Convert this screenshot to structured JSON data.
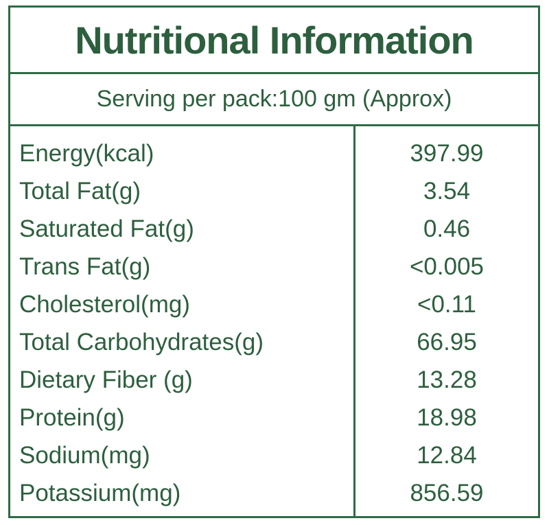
{
  "panel": {
    "title": "Nutritional Information",
    "serving": "Serving per pack:100 gm (Approx)"
  },
  "colors": {
    "text_green": "#2d5f3e",
    "border_green": "#2e6a45",
    "background": "#ffffff"
  },
  "table": {
    "rows": [
      {
        "label": "Energy(kcal)",
        "value": "397.99"
      },
      {
        "label": "Total Fat(g)",
        "value": "3.54"
      },
      {
        "label": "Saturated Fat(g)",
        "value": "0.46"
      },
      {
        "label": "Trans Fat(g)",
        "value": "<0.005"
      },
      {
        "label": "Cholesterol(mg)",
        "value": "<0.11"
      },
      {
        "label": "Total Carbohydrates(g)",
        "value": "66.95"
      },
      {
        "label": "Dietary Fiber (g)",
        "value": "13.28"
      },
      {
        "label": "Protein(g)",
        "value": "18.98"
      },
      {
        "label": "Sodium(mg)",
        "value": "12.84"
      },
      {
        "label": "Potassium(mg)",
        "value": "856.59"
      }
    ]
  }
}
